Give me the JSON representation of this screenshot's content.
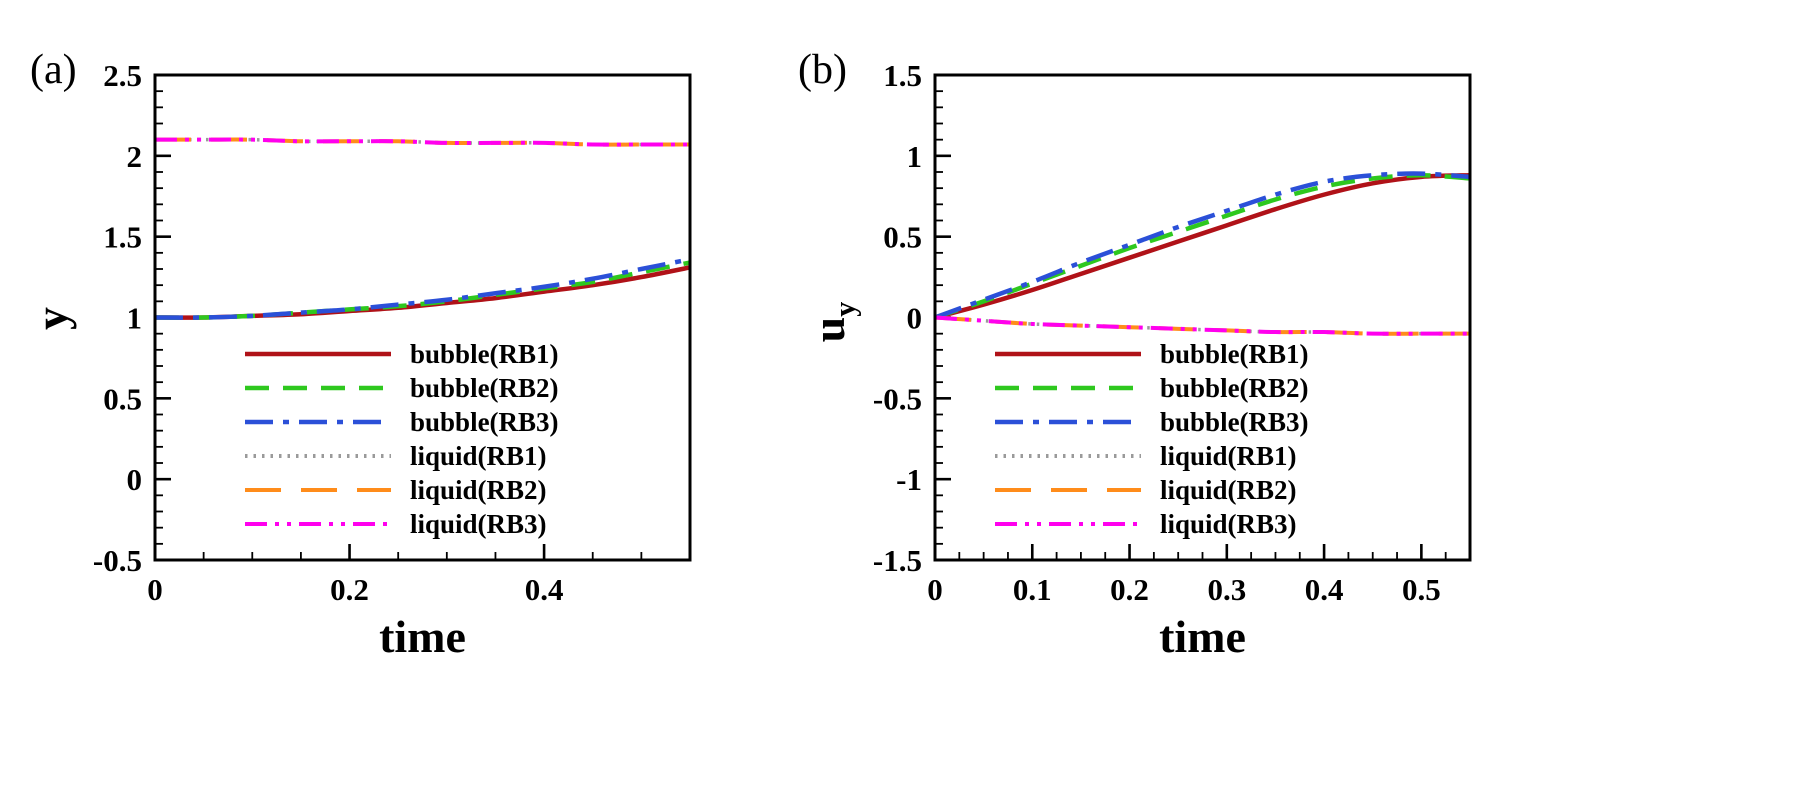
{
  "figure": {
    "background": "#ffffff"
  },
  "chart_data": [
    {
      "type": "line",
      "label": "(a)",
      "xlabel": "time",
      "ylabel": "y",
      "ylabel_sub": "",
      "xlim": [
        0,
        0.55
      ],
      "ylim": [
        -0.5,
        2.5
      ],
      "xticks": [
        0,
        0.2,
        0.4
      ],
      "xtick_labels": [
        "0",
        "0.2",
        "0.4"
      ],
      "yticks": [
        -0.5,
        0,
        0.5,
        1,
        1.5,
        2,
        2.5
      ],
      "ytick_labels": [
        "-0.5",
        "0",
        "0.5",
        "1",
        "1.5",
        "2",
        "2.5"
      ],
      "x_minor": 0.05,
      "y_minor": 0.1,
      "grid": false,
      "legend_pos": {
        "x": 0.165,
        "y": 0.54
      },
      "x": [
        0,
        0.05,
        0.1,
        0.15,
        0.2,
        0.25,
        0.3,
        0.35,
        0.4,
        0.45,
        0.5,
        0.55
      ],
      "series": [
        {
          "name": "bubble(RB1)",
          "color": "#b01218",
          "dash": "solid",
          "width": 4.5,
          "values": [
            1.0,
            1.0,
            1.01,
            1.02,
            1.04,
            1.06,
            1.09,
            1.12,
            1.16,
            1.2,
            1.25,
            1.31
          ]
        },
        {
          "name": "bubble(RB2)",
          "color": "#2ec81e",
          "dash": "dashed",
          "width": 4.5,
          "values": [
            1.0,
            1.0,
            1.01,
            1.03,
            1.05,
            1.07,
            1.1,
            1.14,
            1.18,
            1.22,
            1.28,
            1.34
          ]
        },
        {
          "name": "bubble(RB3)",
          "color": "#2b50d8",
          "dash": "dashdot",
          "width": 4.5,
          "values": [
            1.0,
            1.0,
            1.01,
            1.03,
            1.05,
            1.08,
            1.11,
            1.15,
            1.19,
            1.24,
            1.3,
            1.36
          ]
        },
        {
          "name": "liquid(RB1)",
          "color": "#9a9a9a",
          "dash": "dotted",
          "width": 3.5,
          "values": [
            2.1,
            2.1,
            2.1,
            2.09,
            2.09,
            2.09,
            2.08,
            2.08,
            2.08,
            2.07,
            2.07,
            2.07
          ]
        },
        {
          "name": "liquid(RB2)",
          "color": "#ff8c1a",
          "dash": "longdash",
          "width": 4.0,
          "values": [
            2.1,
            2.1,
            2.1,
            2.09,
            2.09,
            2.09,
            2.08,
            2.08,
            2.08,
            2.07,
            2.07,
            2.07
          ]
        },
        {
          "name": "liquid(RB3)",
          "color": "#ff00ee",
          "dash": "dashdotdot",
          "width": 4.0,
          "values": [
            2.1,
            2.1,
            2.1,
            2.09,
            2.09,
            2.09,
            2.08,
            2.08,
            2.08,
            2.07,
            2.07,
            2.07
          ]
        }
      ]
    },
    {
      "type": "line",
      "label": "(b)",
      "xlabel": "time",
      "ylabel": "u",
      "ylabel_sub": "y",
      "xlim": [
        0,
        0.55
      ],
      "ylim": [
        -1.5,
        1.5
      ],
      "xticks": [
        0,
        0.1,
        0.2,
        0.3,
        0.4,
        0.5
      ],
      "xtick_labels": [
        "0",
        "0.1",
        "0.2",
        "0.3",
        "0.4",
        "0.5"
      ],
      "yticks": [
        -1.5,
        -1,
        -0.5,
        0,
        0.5,
        1,
        1.5
      ],
      "ytick_labels": [
        "-1.5",
        "-1",
        "-0.5",
        "0",
        "0.5",
        "1",
        "1.5"
      ],
      "x_minor": 0.025,
      "y_minor": 0.1,
      "grid": false,
      "legend_pos": {
        "x": 0.11,
        "y": 0.54
      },
      "x": [
        0,
        0.05,
        0.1,
        0.15,
        0.2,
        0.25,
        0.3,
        0.35,
        0.4,
        0.45,
        0.5,
        0.55
      ],
      "series": [
        {
          "name": "bubble(RB1)",
          "color": "#b01218",
          "dash": "solid",
          "width": 4.5,
          "values": [
            0,
            0.08,
            0.17,
            0.27,
            0.37,
            0.47,
            0.57,
            0.67,
            0.76,
            0.83,
            0.87,
            0.88
          ]
        },
        {
          "name": "bubble(RB2)",
          "color": "#2ec81e",
          "dash": "dashed",
          "width": 4.5,
          "values": [
            0,
            0.1,
            0.21,
            0.32,
            0.43,
            0.53,
            0.63,
            0.73,
            0.81,
            0.86,
            0.88,
            0.86
          ]
        },
        {
          "name": "bubble(RB3)",
          "color": "#2b50d8",
          "dash": "dashdot",
          "width": 4.5,
          "values": [
            0,
            0.11,
            0.22,
            0.34,
            0.45,
            0.56,
            0.66,
            0.76,
            0.84,
            0.88,
            0.89,
            0.87
          ]
        },
        {
          "name": "liquid(RB1)",
          "color": "#9a9a9a",
          "dash": "dotted",
          "width": 3.5,
          "values": [
            0,
            -0.02,
            -0.04,
            -0.05,
            -0.06,
            -0.07,
            -0.08,
            -0.09,
            -0.09,
            -0.1,
            -0.1,
            -0.1
          ]
        },
        {
          "name": "liquid(RB2)",
          "color": "#ff8c1a",
          "dash": "longdash",
          "width": 4.0,
          "values": [
            0,
            -0.02,
            -0.04,
            -0.05,
            -0.06,
            -0.07,
            -0.08,
            -0.09,
            -0.09,
            -0.1,
            -0.1,
            -0.1
          ]
        },
        {
          "name": "liquid(RB3)",
          "color": "#ff00ee",
          "dash": "dashdotdot",
          "width": 4.0,
          "values": [
            0,
            -0.02,
            -0.04,
            -0.05,
            -0.06,
            -0.07,
            -0.08,
            -0.09,
            -0.09,
            -0.1,
            -0.1,
            -0.1
          ]
        }
      ]
    }
  ]
}
